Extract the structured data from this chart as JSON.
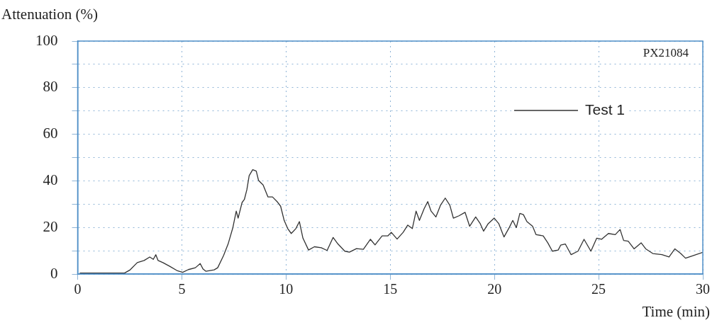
{
  "chart_data": {
    "type": "line",
    "xlabel": "Time (min)",
    "ylabel": "Attenuation (%)",
    "annotations": [
      "PX21084"
    ],
    "xlim": [
      0,
      30
    ],
    "xticks": [
      0,
      5,
      10,
      15,
      20,
      25,
      30
    ],
    "ylim": [
      0,
      100
    ],
    "yticks": [
      0,
      {
        "value": 10,
        "label": null
      },
      20,
      {
        "value": 30,
        "label": null
      },
      40,
      {
        "value": 50,
        "label": null
      },
      60,
      {
        "value": 70,
        "label": null
      },
      80,
      {
        "value": 90,
        "label": null
      },
      100
    ],
    "grid": true,
    "legend": "top right",
    "marker": "none",
    "line_style": "solid",
    "series": [
      {
        "name": "Test 1",
        "color": "#333333",
        "x": [
          0.1,
          1,
          2.25,
          2.52,
          2.86,
          3.19,
          3.46,
          3.63,
          3.75,
          3.86,
          4.09,
          4.42,
          4.76,
          5.04,
          5.31,
          5.65,
          5.88,
          6.02,
          6.15,
          6.55,
          6.72,
          7.0,
          7.22,
          7.45,
          7.61,
          7.7,
          7.89,
          8.0,
          8.12,
          8.23,
          8.4,
          8.57,
          8.68,
          8.9,
          9.13,
          9.35,
          9.57,
          9.74,
          9.91,
          10.08,
          10.25,
          10.47,
          10.64,
          10.81,
          11.08,
          11.36,
          11.69,
          11.97,
          12.26,
          12.49,
          12.82,
          13.04,
          13.38,
          13.71,
          14.05,
          14.27,
          14.61,
          14.89,
          15.05,
          15.33,
          15.62,
          15.84,
          16.06,
          16.24,
          16.4,
          16.63,
          16.8,
          16.96,
          17.19,
          17.41,
          17.64,
          17.86,
          18.03,
          18.3,
          18.59,
          18.81,
          19.1,
          19.32,
          19.48,
          19.7,
          19.99,
          20.21,
          20.46,
          20.72,
          20.88,
          21.05,
          21.22,
          21.39,
          21.56,
          21.83,
          22.0,
          22.34,
          22.56,
          22.78,
          23.06,
          23.18,
          23.4,
          23.68,
          24.01,
          24.3,
          24.63,
          24.91,
          25.14,
          25.47,
          25.8,
          26.03,
          26.2,
          26.42,
          26.7,
          27.04,
          27.26,
          27.6,
          28.04,
          28.38,
          28.66,
          28.94,
          29.17,
          29.5,
          30.0
        ],
        "values": [
          0.4,
          0.4,
          0.4,
          1.8,
          4.9,
          5.8,
          7.3,
          6.3,
          8.3,
          5.8,
          4.9,
          3.3,
          1.5,
          0.7,
          1.9,
          2.7,
          4.5,
          2.1,
          1.2,
          1.8,
          2.7,
          7.9,
          12.9,
          20,
          27,
          24,
          30.7,
          32,
          36.2,
          42.2,
          44.8,
          44.2,
          40.2,
          38.2,
          33.1,
          33.1,
          31.1,
          29.1,
          23,
          19.5,
          17.4,
          19.5,
          22.5,
          15.4,
          10.3,
          11.7,
          11.3,
          10.1,
          15.7,
          12.9,
          9.8,
          9.4,
          10.9,
          10.6,
          14.9,
          12.5,
          16.4,
          16.4,
          17.9,
          15,
          17.9,
          21,
          19.5,
          27,
          23,
          28.1,
          31.1,
          27,
          24.5,
          29.5,
          32.6,
          29.5,
          24,
          25,
          26.5,
          20.5,
          24.5,
          21.6,
          18.4,
          21.6,
          24,
          21.6,
          15.9,
          20.1,
          23,
          19.9,
          26,
          25.5,
          22.5,
          20.5,
          16.9,
          16.4,
          13.4,
          9.8,
          10.3,
          12.4,
          12.9,
          8.3,
          9.8,
          14.9,
          9.8,
          15.4,
          14.9,
          17.4,
          16.9,
          19.1,
          14.4,
          14.1,
          10.8,
          13.4,
          10.8,
          8.8,
          8.3,
          7.3,
          10.8,
          8.8,
          6.8,
          7.8,
          9.3
        ]
      }
    ]
  }
}
